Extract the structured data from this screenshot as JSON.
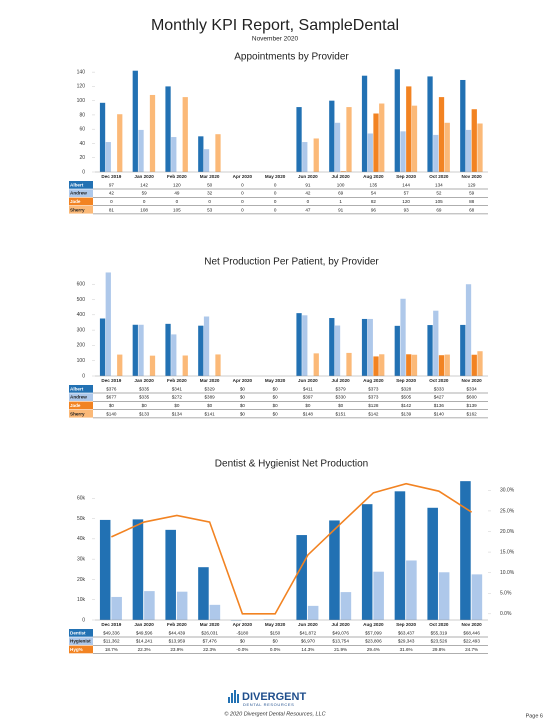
{
  "header": {
    "title": "Monthly KPI Report,  SampleDental",
    "subtitle": "November 2020"
  },
  "chart_data": [
    {
      "type": "bar",
      "title": "Appointments by Provider",
      "categories": [
        "Dec 2019",
        "Jan 2020",
        "Feb 2020",
        "Mar 2020",
        "Apr 2020",
        "May 2020",
        "Jun 2020",
        "Jul 2020",
        "Aug 2020",
        "Sep 2020",
        "Oct 2020",
        "Nov 2020"
      ],
      "ylim": [
        0,
        150
      ],
      "yticks": [
        0,
        20,
        40,
        60,
        80,
        100,
        120,
        140
      ],
      "grid": false,
      "series": [
        {
          "name": "Albert",
          "color": "#2271b3",
          "values": [
            97,
            142,
            120,
            50,
            0,
            0,
            91,
            100,
            135,
            144,
            134,
            129
          ]
        },
        {
          "name": "Andrew",
          "color": "#aec8ea",
          "values": [
            42,
            59,
            49,
            32,
            0,
            0,
            42,
            69,
            54,
            57,
            52,
            59
          ]
        },
        {
          "name": "Jade",
          "color": "#f28322",
          "values": [
            0,
            0,
            0,
            0,
            0,
            0,
            0,
            1,
            82,
            120,
            105,
            88
          ]
        },
        {
          "name": "Sherry",
          "color": "#fbb978",
          "values": [
            81,
            108,
            105,
            53,
            0,
            0,
            47,
            91,
            96,
            93,
            69,
            68
          ]
        }
      ]
    },
    {
      "type": "bar",
      "title": "Net Production Per Patient, by Provider",
      "categories": [
        "Dec 2019",
        "Jan 2020",
        "Feb 2020",
        "Mar 2020",
        "Apr 2020",
        "May 2020",
        "Jun 2020",
        "Jul 2020",
        "Aug 2020",
        "Sep 2020",
        "Oct 2020",
        "Nov 2020"
      ],
      "ylim": [
        0,
        680
      ],
      "yticks": [
        0,
        100,
        200,
        300,
        400,
        500,
        600
      ],
      "grid": false,
      "series": [
        {
          "name": "Albert",
          "color": "#2271b3",
          "values": [
            376,
            335,
            341,
            329,
            0,
            0,
            411,
            379,
            373,
            328,
            333,
            334
          ],
          "value_labels": [
            "$376",
            "$335",
            "$341",
            "$329",
            "$0",
            "$0",
            "$411",
            "$379",
            "$373",
            "$328",
            "$333",
            "$334"
          ]
        },
        {
          "name": "Andrew",
          "color": "#aec8ea",
          "values": [
            677,
            335,
            272,
            389,
            0,
            0,
            397,
            330,
            373,
            505,
            427,
            600
          ],
          "value_labels": [
            "$677",
            "$335",
            "$272",
            "$389",
            "$0",
            "$0",
            "$397",
            "$330",
            "$373",
            "$505",
            "$427",
            "$600"
          ]
        },
        {
          "name": "Jade",
          "color": "#f28322",
          "values": [
            0,
            0,
            0,
            0,
            0,
            0,
            0,
            0,
            128,
            142,
            136,
            139
          ],
          "value_labels": [
            "$0",
            "$0",
            "$0",
            "$0",
            "$0",
            "$0",
            "$0",
            "$0",
            "$128",
            "$142",
            "$136",
            "$139"
          ]
        },
        {
          "name": "Sherry",
          "color": "#fbb978",
          "values": [
            140,
            133,
            134,
            141,
            0,
            0,
            148,
            151,
            142,
            139,
            140,
            162
          ],
          "value_labels": [
            "$140",
            "$133",
            "$134",
            "$141",
            "$0",
            "$0",
            "$148",
            "$151",
            "$142",
            "$139",
            "$140",
            "$162"
          ]
        }
      ]
    },
    {
      "type": "combo",
      "title": "Dentist & Hygienist Net Production",
      "categories": [
        "Dec 2019",
        "Jan 2020",
        "Feb 2020",
        "Mar 2020",
        "Apr 2020",
        "May 2020",
        "Jun 2020",
        "Jul 2020",
        "Aug 2020",
        "Sep 2020",
        "Oct 2020",
        "Nov 2020"
      ],
      "ylim": [
        0,
        70000
      ],
      "yticks": [
        0,
        {
          "value": 10000,
          "label": "10k"
        },
        {
          "value": 20000,
          "label": "20k"
        },
        {
          "value": 30000,
          "label": "30k"
        },
        {
          "value": 40000,
          "label": "40k"
        },
        {
          "value": 50000,
          "label": "50k"
        },
        {
          "value": 60000,
          "label": "60k"
        }
      ],
      "y2lim": [
        -1.5,
        33
      ],
      "y2ticks": [
        {
          "value": 0,
          "label": "0.0%"
        },
        {
          "value": 5,
          "label": "5.0%"
        },
        {
          "value": 10,
          "label": "10.0%"
        },
        {
          "value": 15,
          "label": "15.0%"
        },
        {
          "value": 20,
          "label": "20.0%"
        },
        {
          "value": 25,
          "label": "25.0%"
        },
        {
          "value": 30,
          "label": "30.0%"
        }
      ],
      "grid": false,
      "series": [
        {
          "name": "Dentist",
          "color": "#2271b3",
          "values": [
            49336,
            49596,
            44439,
            26031,
            -180,
            150,
            41872,
            49076,
            57099,
            63437,
            55319,
            68446
          ],
          "value_labels": [
            "$49,336",
            "$49,596",
            "$44,439",
            "$26,031",
            "-$180",
            "$150",
            "$41,872",
            "$49,076",
            "$57,099",
            "$63,437",
            "$55,319",
            "$68,446"
          ]
        },
        {
          "name": "Hygienist",
          "color": "#aec8ea",
          "values": [
            11362,
            14241,
            13959,
            7476,
            0,
            0,
            6970,
            13754,
            23806,
            29343,
            23526,
            22493
          ],
          "value_labels": [
            "$11,362",
            "$14,241",
            "$13,959",
            "$7,476",
            "$0",
            "$0",
            "$6,970",
            "$13,754",
            "$23,806",
            "$29,343",
            "$23,526",
            "$22,493"
          ]
        },
        {
          "name": "Hyg%",
          "color": "#f28322",
          "axis": "y2",
          "values": [
            18.7,
            22.3,
            23.9,
            22.3,
            0,
            0,
            14.3,
            21.9,
            29.4,
            31.6,
            29.8,
            24.7
          ],
          "value_labels": [
            "18.7%",
            "22.3%",
            "23.9%",
            "22.3%",
            "-0.0%",
            "0.0%",
            "14.3%",
            "21.9%",
            "29.4%",
            "31.6%",
            "29.8%",
            "24.7%"
          ]
        }
      ]
    }
  ],
  "footer": {
    "brand": "DIVERGENT",
    "brand_sub": "DENTAL RESOURCES",
    "copyright": "© 2020 Divergent Dental Resources, LLC",
    "page": "Page 6"
  }
}
